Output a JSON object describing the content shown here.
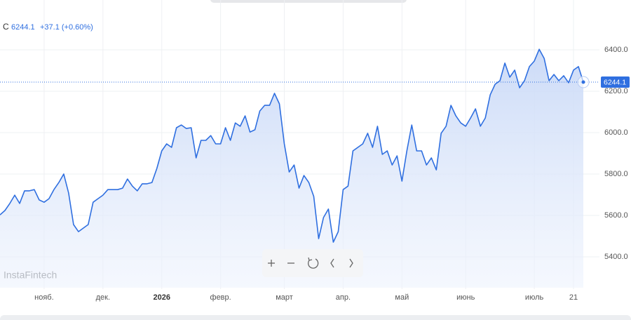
{
  "chart_data": {
    "type": "area-line",
    "symbol": "C",
    "change": "+37.1 (+0.60%)",
    "watermark": "InstaFintech",
    "color": "#2f6fe0",
    "categories": [
      null,
      null,
      null,
      null,
      null,
      null,
      null,
      null,
      null,
      "нояб.",
      null,
      null,
      null,
      null,
      null,
      null,
      null,
      null,
      null,
      null,
      null,
      "дек.",
      null,
      null,
      null,
      null,
      null,
      null,
      null,
      null,
      null,
      null,
      null,
      "2026",
      null,
      null,
      null,
      null,
      null,
      null,
      null,
      null,
      null,
      null,
      null,
      "февр.",
      null,
      null,
      null,
      null,
      null,
      null,
      null,
      null,
      null,
      null,
      null,
      null,
      "март",
      null,
      null,
      null,
      null,
      null,
      null,
      null,
      null,
      null,
      null,
      null,
      "апр.",
      null,
      null,
      null,
      null,
      null,
      null,
      null,
      null,
      null,
      null,
      null,
      "май",
      null,
      null,
      null,
      null,
      null,
      null,
      null,
      null,
      null,
      null,
      null,
      null,
      "июнь",
      null,
      null,
      null,
      null,
      null,
      null,
      null,
      null,
      null,
      null,
      null,
      null,
      null,
      "июль",
      null,
      null,
      null,
      null,
      null,
      null,
      null,
      "21",
      null,
      null
    ],
    "values": [
      5603,
      5624,
      5658,
      5698,
      5658,
      5719,
      5719,
      5725,
      5675,
      5664,
      5681,
      5725,
      5759,
      5800,
      5708,
      5556,
      5522,
      5539,
      5556,
      5664,
      5681,
      5698,
      5725,
      5725,
      5725,
      5732,
      5776,
      5742,
      5719,
      5753,
      5753,
      5759,
      5827,
      5912,
      5946,
      5929,
      6024,
      6037,
      6020,
      6024,
      5878,
      5963,
      5963,
      5986,
      5946,
      5946,
      6024,
      5963,
      6047,
      6031,
      6081,
      6003,
      6014,
      6105,
      6132,
      6132,
      6190,
      6139,
      5946,
      5810,
      5844,
      5732,
      5793,
      5759,
      5692,
      5488,
      5590,
      5631,
      5471,
      5522,
      5725,
      5742,
      5912,
      5929,
      5946,
      5997,
      5929,
      6031,
      5895,
      5912,
      5844,
      5888,
      5766,
      5912,
      6037,
      5912,
      5912,
      5844,
      5878,
      5820,
      5997,
      6031,
      6132,
      6081,
      6047,
      6031,
      6071,
      6115,
      6031,
      6071,
      6183,
      6234,
      6251,
      6336,
      6268,
      6302,
      6217,
      6251,
      6319,
      6346,
      6403,
      6359,
      6251,
      6281,
      6251,
      6275,
      6241,
      6302,
      6319,
      6244.1
    ],
    "ylim": [
      5251,
      6573
    ],
    "yticks": [
      {
        "value": 5400,
        "label": "5400.0"
      },
      {
        "value": 5600,
        "label": "5600.0"
      },
      {
        "value": 5800,
        "label": "5800.0"
      },
      {
        "value": 6000,
        "label": "6000.0"
      },
      {
        "value": 6200,
        "label": "6200.0"
      },
      {
        "value": 6400,
        "label": "6400.0"
      }
    ],
    "grid": true
  }
}
